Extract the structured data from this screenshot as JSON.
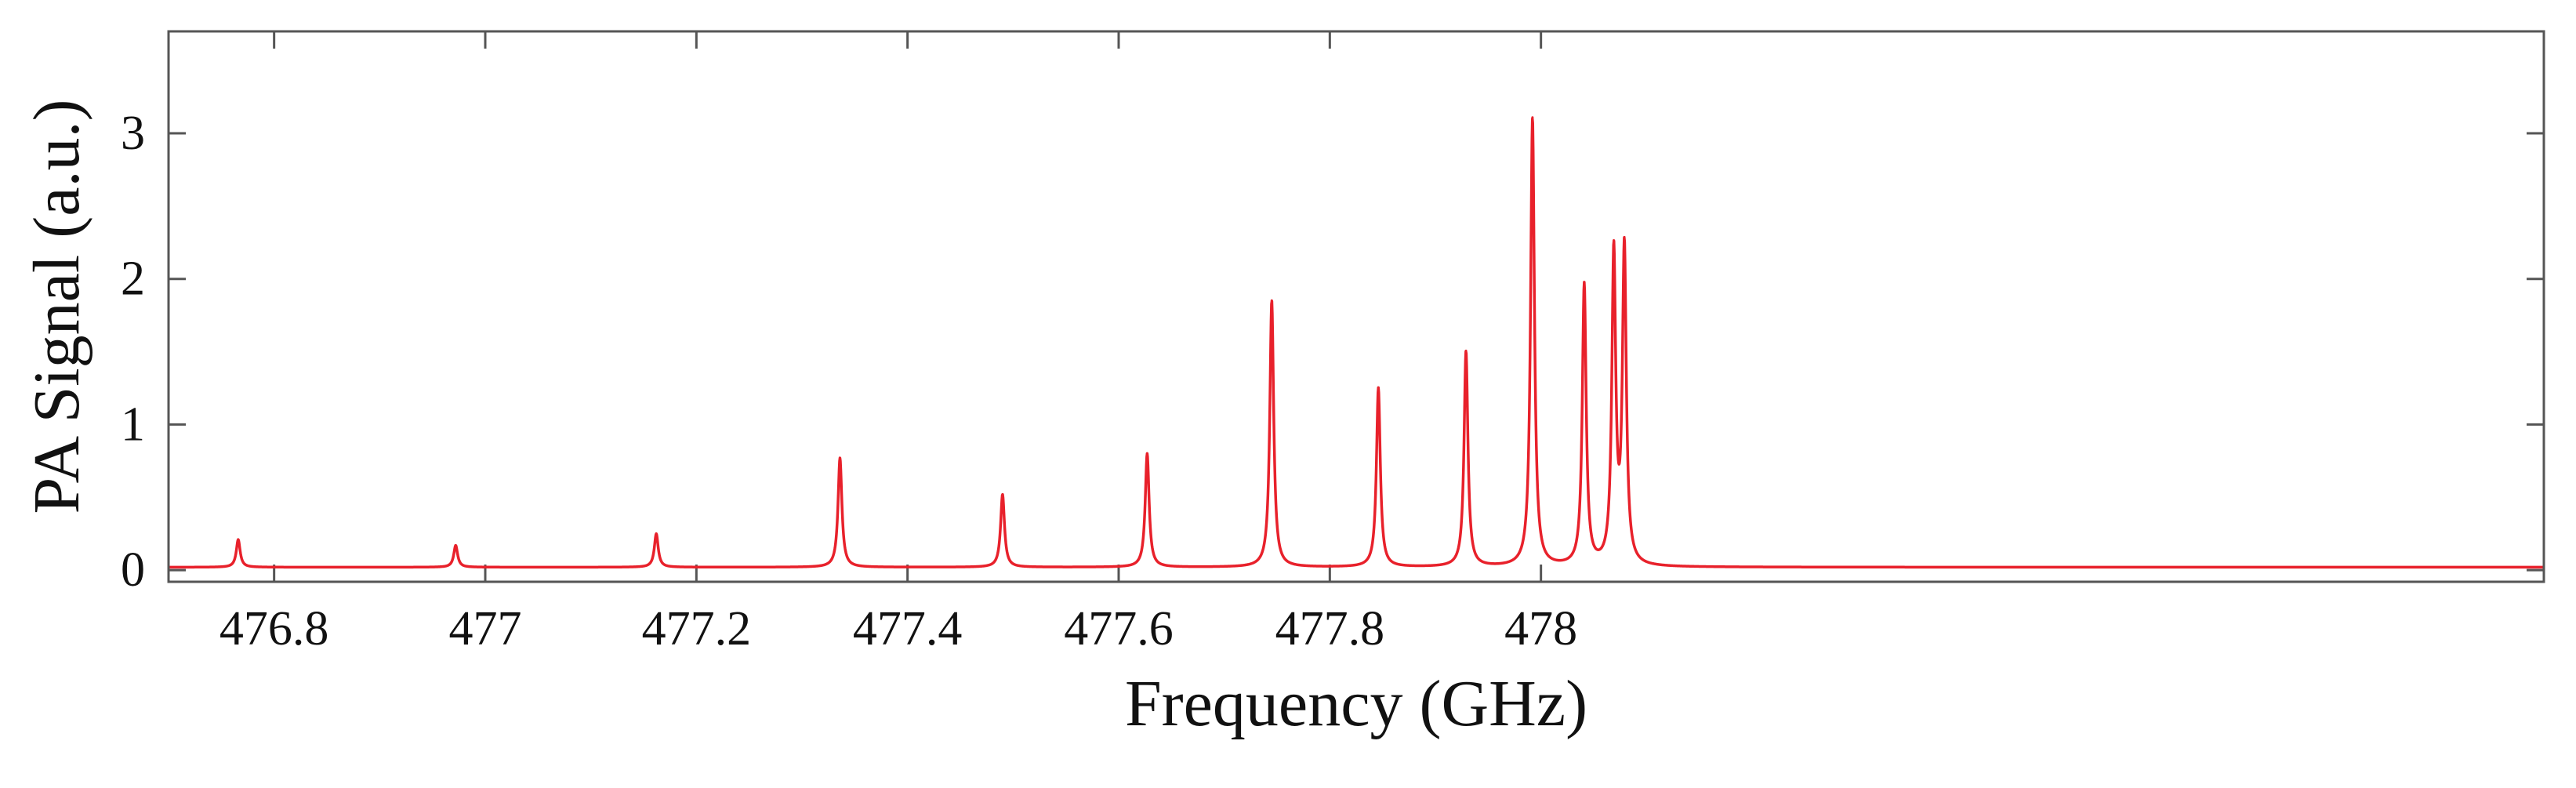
{
  "chart_data": {
    "type": "line",
    "title": "",
    "xlabel": "Frequency (GHz)",
    "ylabel": "PA Signal (a.u.)",
    "xlim": [
      476.7,
      478.95
    ],
    "ylim": [
      -0.08,
      3.7
    ],
    "xticks": [
      476.8,
      477,
      477.2,
      477.4,
      477.6,
      477.8,
      478
    ],
    "xtick_labels": [
      "476.8",
      "477",
      "477.2",
      "477.4",
      "477.6",
      "477.8",
      "478"
    ],
    "yticks": [
      0,
      1,
      2,
      3
    ],
    "ytick_labels": [
      "0",
      "1",
      "2",
      "3"
    ],
    "grid": false,
    "baseline": 0.02,
    "series": [
      {
        "color": "#e8212b",
        "peaks": [
          {
            "x": 476.766,
            "y": 0.21
          },
          {
            "x": 476.972,
            "y": 0.17
          },
          {
            "x": 477.162,
            "y": 0.25
          },
          {
            "x": 477.336,
            "y": 0.77
          },
          {
            "x": 477.49,
            "y": 0.52
          },
          {
            "x": 477.627,
            "y": 0.8
          },
          {
            "x": 477.745,
            "y": 1.85
          },
          {
            "x": 477.846,
            "y": 1.25
          },
          {
            "x": 477.929,
            "y": 1.5
          },
          {
            "x": 477.992,
            "y": 3.1
          },
          {
            "x": 478.041,
            "y": 1.95
          },
          {
            "x": 478.069,
            "y": 2.15
          },
          {
            "x": 478.079,
            "y": 2.18
          }
        ]
      }
    ]
  }
}
